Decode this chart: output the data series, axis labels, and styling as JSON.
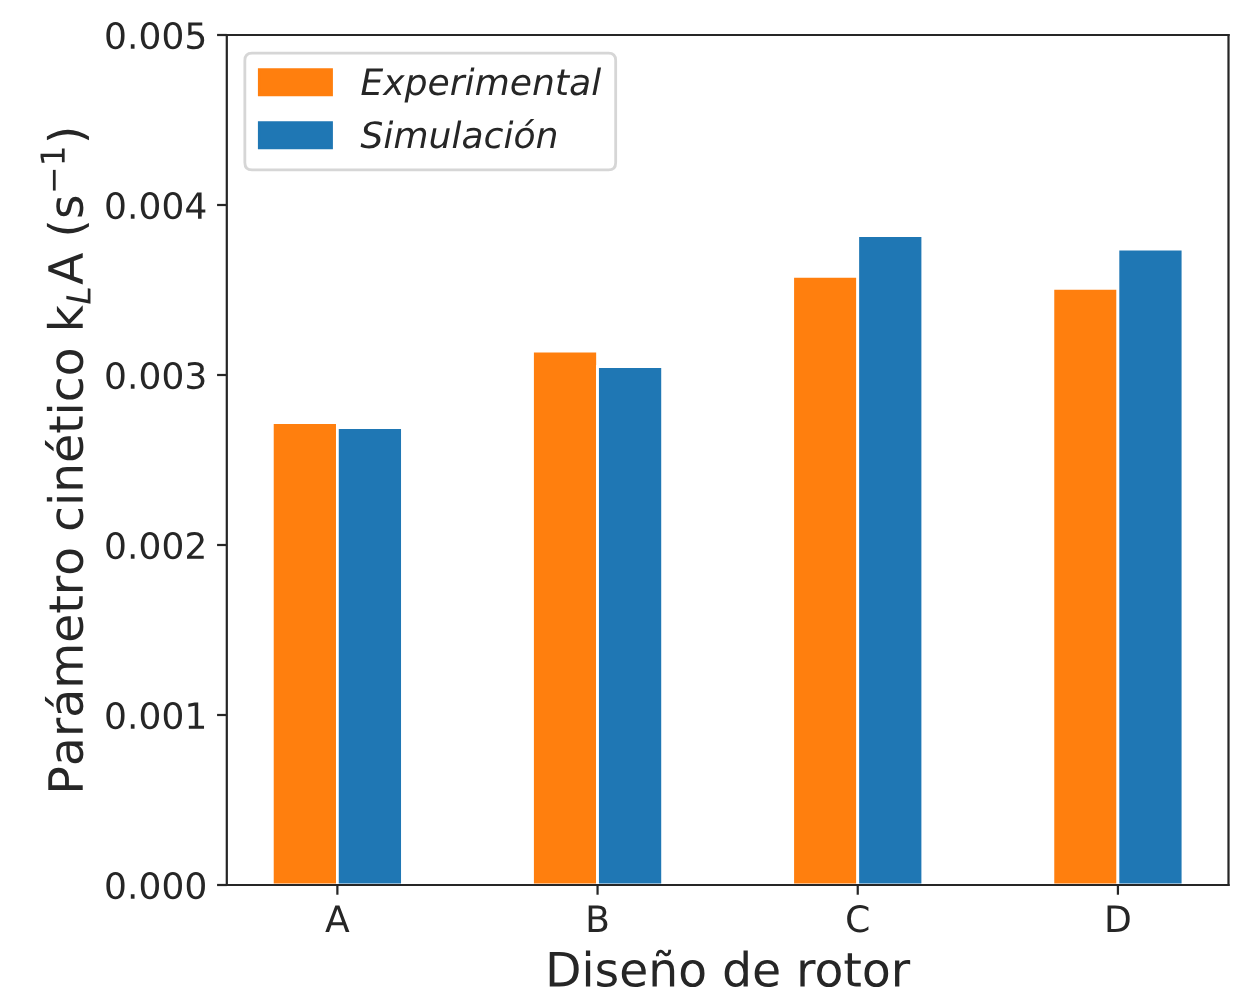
{
  "chart_data": {
    "type": "bar",
    "xlabel": "Diseño de rotor",
    "ylabel": "Parámetro cinético k$_{L}$A (s$^{−1}$)",
    "categories": [
      "A",
      "B",
      "C",
      "D"
    ],
    "series": [
      {
        "name": "Experimental",
        "color": "#ff7f0e",
        "values": [
          0.00272,
          0.00314,
          0.00358,
          0.00351
        ]
      },
      {
        "name": "Simulación",
        "color": "#1f77b4",
        "values": [
          0.00269,
          0.00305,
          0.00382,
          0.00374
        ]
      }
    ],
    "ylim": [
      0,
      0.005
    ],
    "yticks": [
      {
        "value": 0,
        "label": "0.000"
      },
      {
        "value": 0.001,
        "label": "0.001"
      },
      {
        "value": 0.002,
        "label": "0.002"
      },
      {
        "value": 0.003,
        "label": "0.003"
      },
      {
        "value": 0.004,
        "label": "0.004"
      },
      {
        "value": 0.005,
        "label": "0.005"
      }
    ],
    "grid": false,
    "legend": "top left"
  }
}
